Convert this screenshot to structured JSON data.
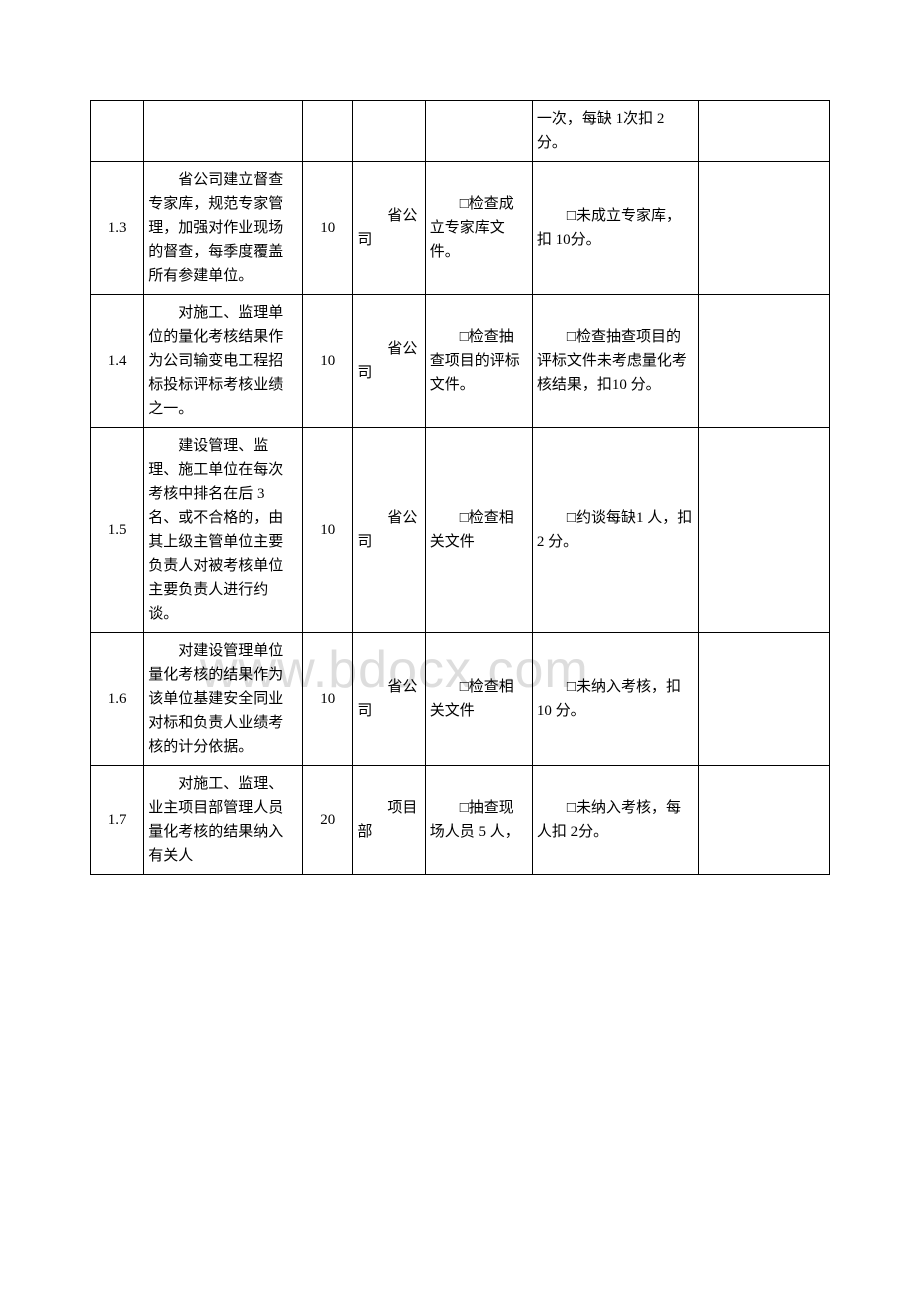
{
  "watermark": "www.bdocx.com",
  "table": {
    "columns": [
      {
        "class": "col-1"
      },
      {
        "class": "col-2"
      },
      {
        "class": "col-3"
      },
      {
        "class": "col-4"
      },
      {
        "class": "col-5"
      },
      {
        "class": "col-6"
      },
      {
        "class": "col-7"
      }
    ],
    "rows": [
      {
        "cells": [
          {
            "text": ""
          },
          {
            "text": ""
          },
          {
            "text": ""
          },
          {
            "text": ""
          },
          {
            "text": ""
          },
          {
            "text": "一次，每缺 1次扣 2 分。"
          },
          {
            "text": ""
          }
        ]
      },
      {
        "cells": [
          {
            "text": "1.3"
          },
          {
            "text": "省公司建立督查专家库，规范专家管理，加强对作业现场的督查，每季度覆盖所有参建单位。",
            "indent": true
          },
          {
            "text": "10"
          },
          {
            "text": "省公司",
            "indent": true
          },
          {
            "text": "□检查成立专家库文件。",
            "indent": true
          },
          {
            "text": "□未成立专家库，扣 10分。",
            "indent": true
          },
          {
            "text": ""
          }
        ]
      },
      {
        "cells": [
          {
            "text": "1.4"
          },
          {
            "text": "对施工、监理单位的量化考核结果作为公司输变电工程招标投标评标考核业绩之一。",
            "indent": true
          },
          {
            "text": "10"
          },
          {
            "text": "省公司",
            "indent": true
          },
          {
            "text": "□检查抽查项目的评标文件。",
            "indent": true
          },
          {
            "text": "□检查抽查项目的评标文件未考虑量化考核结果，扣10 分。",
            "indent": true
          },
          {
            "text": ""
          }
        ]
      },
      {
        "cells": [
          {
            "text": "1.5"
          },
          {
            "text": "建设管理、监理、施工单位在每次考核中排名在后 3 名、或不合格的，由其上级主管单位主要负责人对被考核单位主要负责人进行约谈。",
            "indent": true
          },
          {
            "text": "10"
          },
          {
            "text": "省公司",
            "indent": true
          },
          {
            "text": "□检查相关文件",
            "indent": true
          },
          {
            "text": "□约谈每缺1 人，扣 2 分。",
            "indent": true
          },
          {
            "text": ""
          }
        ]
      },
      {
        "cells": [
          {
            "text": "1.6"
          },
          {
            "text": "对建设管理单位量化考核的结果作为该单位基建安全同业对标和负责人业绩考核的计分依据。",
            "indent": true
          },
          {
            "text": "10"
          },
          {
            "text": "省公司",
            "indent": true
          },
          {
            "text": "□检查相关文件",
            "indent": true
          },
          {
            "text": "□未纳入考核，扣 10 分。",
            "indent": true
          },
          {
            "text": ""
          }
        ]
      },
      {
        "cells": [
          {
            "text": "1.7"
          },
          {
            "text": "对施工、监理、业主项目部管理人员量化考核的结果纳入有关人",
            "indent": true
          },
          {
            "text": "20"
          },
          {
            "text": "项目部",
            "indent": true
          },
          {
            "text": "□抽查现场人员 5 人，",
            "indent": true
          },
          {
            "text": "□未纳入考核，每人扣 2分。",
            "indent": true
          },
          {
            "text": ""
          }
        ]
      }
    ]
  }
}
